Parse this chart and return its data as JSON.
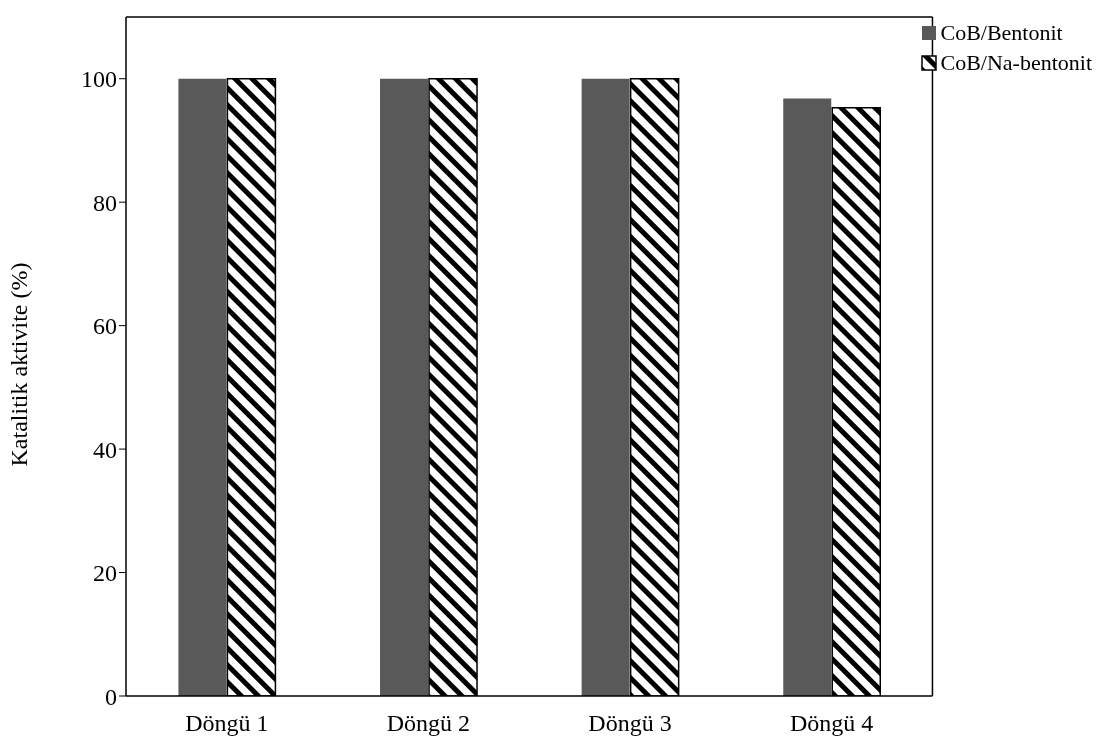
{
  "chart_data": {
    "type": "bar",
    "ylabel": "Katalitik aktivite (%)",
    "categories": [
      "Döngü 1",
      "Döngü 2",
      "Döngü 3",
      "Döngü 4"
    ],
    "series": [
      {
        "name": "CoB/Bentonit",
        "color": "#595959",
        "values": [
          100,
          100,
          100,
          96.8
        ]
      },
      {
        "name": "CoB/Na-bentonit",
        "color": "#000000",
        "values": [
          100,
          100,
          100,
          95.3
        ]
      }
    ],
    "ylim": [
      0,
      110
    ],
    "yticks": [
      0,
      20,
      40,
      60,
      80,
      100
    ],
    "grid": false,
    "legend": "top right"
  }
}
